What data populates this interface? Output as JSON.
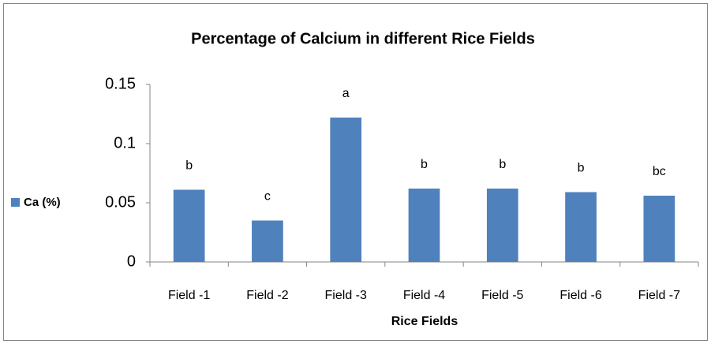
{
  "chart_data": {
    "type": "bar",
    "title": "Percentage of Calcium in different Rice Fields",
    "x_label": "Rice Fields",
    "categories": [
      "Field -1",
      "Field -2",
      "Field -3",
      "Field -4",
      "Field -5",
      "Field -6",
      "Field -7"
    ],
    "series": [
      {
        "name": "Ca (%)",
        "color": "#4f81bd",
        "values": [
          0.061,
          0.035,
          0.122,
          0.062,
          0.062,
          0.059,
          0.056
        ]
      }
    ],
    "annotations": [
      "b",
      "c",
      "a",
      "b",
      "b",
      "b",
      "bc"
    ],
    "ylim": [
      0,
      0.15
    ],
    "yticks": [
      0,
      0.05,
      0.1,
      0.15
    ],
    "grid": false,
    "legend": "left"
  }
}
